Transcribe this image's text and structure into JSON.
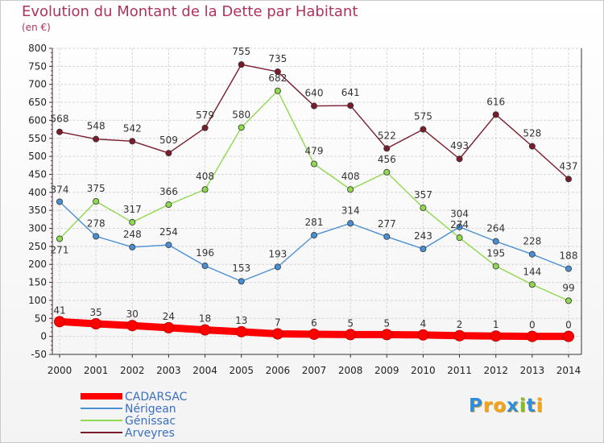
{
  "header": {
    "title": "Evolution du Montant de la Dette par Habitant",
    "subtitle": "(en €)"
  },
  "logo": {
    "letters": [
      "P",
      "r",
      "o",
      "x",
      "i",
      "t",
      "i"
    ],
    "colors": [
      "#2f8ddc",
      "#f2a41a",
      "#f2a41a",
      "#2f8ddc",
      "#7bbf2c",
      "#2f8ddc",
      "#f2a41a"
    ]
  },
  "chart_data": {
    "type": "line",
    "x": [
      2000,
      2001,
      2002,
      2003,
      2004,
      2005,
      2006,
      2007,
      2008,
      2009,
      2010,
      2011,
      2012,
      2013,
      2014
    ],
    "ylim": [
      -50,
      800
    ],
    "yticks": [
      -50,
      0,
      50,
      100,
      150,
      200,
      250,
      300,
      350,
      400,
      450,
      500,
      550,
      600,
      650,
      700,
      750,
      800
    ],
    "legend_position": "bottom-left",
    "series": [
      {
        "name": "CADARSAC",
        "color": "#ff0000",
        "values": [
          41,
          35,
          30,
          24,
          18,
          13,
          7,
          6,
          5,
          5,
          4,
          2,
          1,
          0,
          0
        ]
      },
      {
        "name": "Nérigean",
        "color": "#4a8fd4",
        "values": [
          374,
          278,
          248,
          254,
          196,
          153,
          193,
          281,
          314,
          277,
          243,
          304,
          264,
          228,
          188
        ]
      },
      {
        "name": "Génissac",
        "color": "#8fd94e",
        "values": [
          271,
          375,
          317,
          366,
          408,
          580,
          682,
          479,
          408,
          456,
          357,
          274,
          195,
          144,
          99
        ]
      },
      {
        "name": "Arveyres",
        "color": "#7a1c2c",
        "values": [
          568,
          548,
          542,
          509,
          579,
          755,
          735,
          640,
          641,
          522,
          575,
          493,
          616,
          528,
          437
        ]
      }
    ]
  }
}
